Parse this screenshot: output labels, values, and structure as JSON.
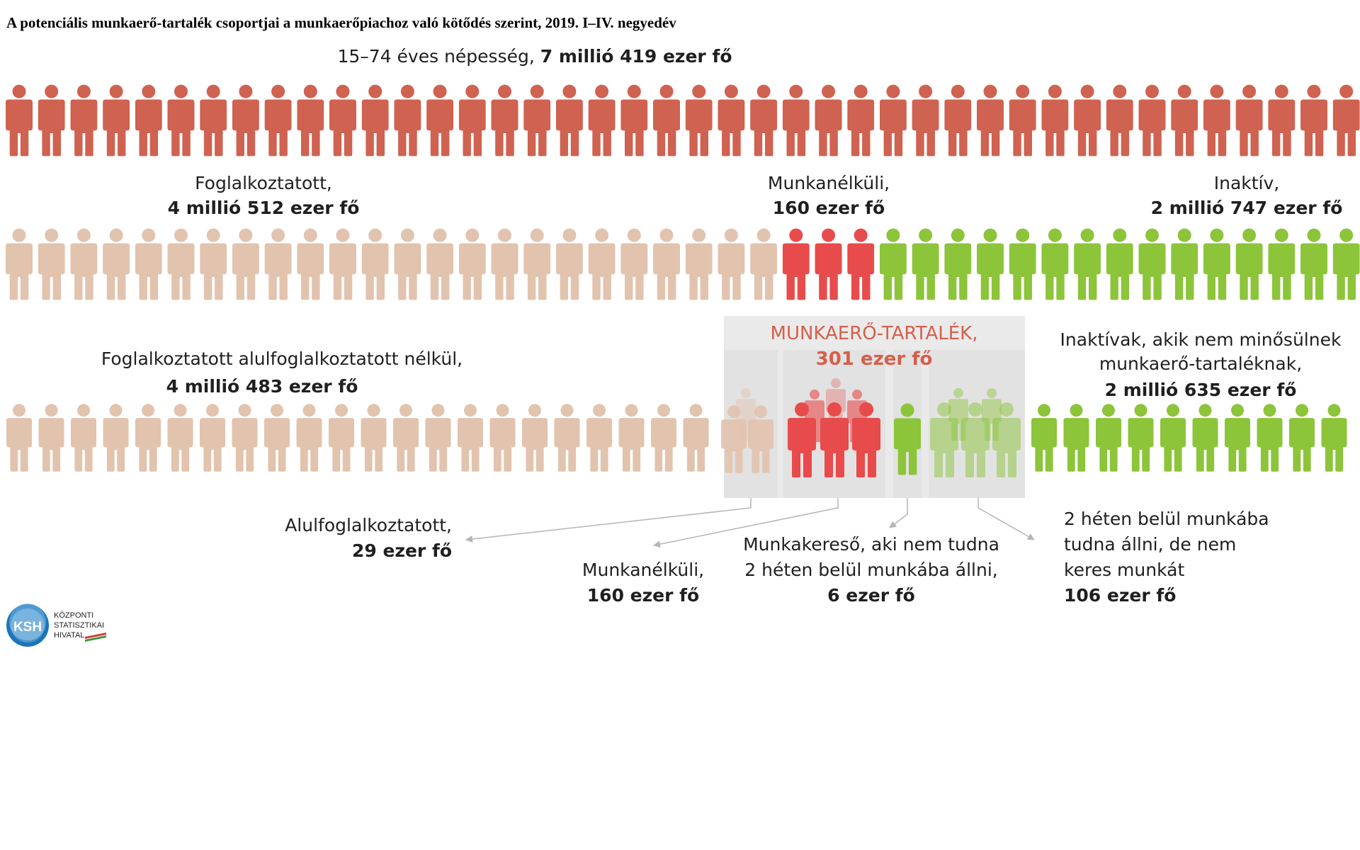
{
  "title": "A potenciális munkaerő-tartalék csoportjai a munkaerőpiachoz való kötődés szerint, 2019. I–IV. negyedév",
  "population": {
    "text": "15–74 éves népesség, ",
    "value": "7 millió 419 ezer fő",
    "icon_count": 42
  },
  "row2": {
    "employed": {
      "label": "Foglalkoztatott,",
      "value": "4 millió 512 ezer fő",
      "icon_count": 24
    },
    "unemployed": {
      "label": "Munkanélküli,",
      "value": "160 ezer fő",
      "icon_count": 3
    },
    "inactive": {
      "label": "Inaktív,",
      "value": "2 millió 747 ezer fő",
      "icon_count": 15
    }
  },
  "row3": {
    "employed_no_under": {
      "label": "Foglalkoztatott alulfoglalkoztatott nélkül,",
      "value": "4 millió 483 ezer fő",
      "icon_count": 22
    },
    "inactive_not_reserve": {
      "label1": "Inaktívak, akik nem minősülnek",
      "label2": "munkaerő-tartaléknak,",
      "value": "2 millió 635 ezer fő",
      "icon_count": 10
    }
  },
  "reserve": {
    "title": "MUNKAERŐ-TARTALÉK,",
    "value": "301 ezer fő"
  },
  "breakdown": {
    "underemployed": {
      "label": "Alulfoglalkoztatott,",
      "value": "29 ezer fő"
    },
    "unemployed": {
      "label": "Munkanélküli,",
      "value": "160 ezer fő"
    },
    "jobseeker": {
      "label1": "Munkakereső, aki nem tudna",
      "label2": "2 héten belül munkába állni,",
      "value": "6 ezer fő"
    },
    "available": {
      "label1": "2 héten belül munkába",
      "label2": "tudna állni, de nem",
      "label3": "keres munkát",
      "value": "106 ezer fő"
    }
  },
  "logo": {
    "abbr": "KSH",
    "line1": "KÖZPONTI",
    "line2": "STATISZTIKAI",
    "line3": "HIVATAL"
  },
  "colors": {
    "population": "#cf6250",
    "employed": "#e2c3ae",
    "unemployed": "#e84b4b",
    "inactive": "#8cc43a",
    "reserve_box": "#eaeaea",
    "reserve_text": "#d4604c"
  }
}
